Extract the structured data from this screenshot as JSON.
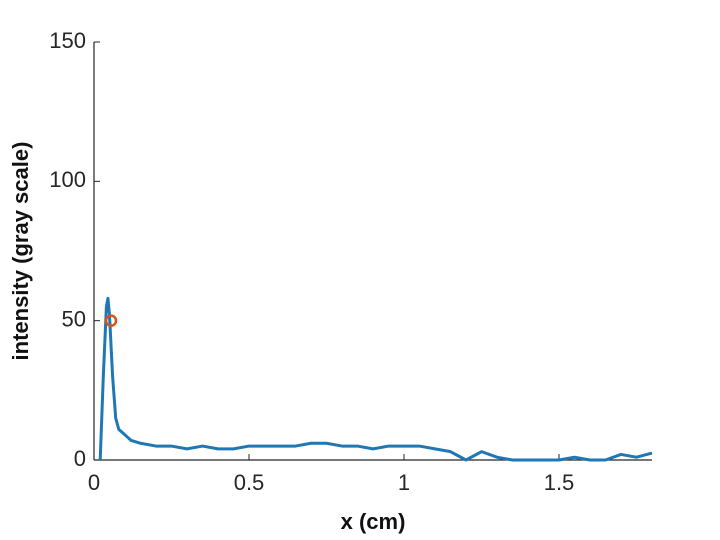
{
  "chart_data": {
    "type": "line",
    "xlabel": "x (cm)",
    "ylabel": "intensity (gray scale)",
    "x": [
      0.02,
      0.03,
      0.04,
      0.045,
      0.05,
      0.06,
      0.07,
      0.08,
      0.1,
      0.12,
      0.15,
      0.2,
      0.25,
      0.3,
      0.35,
      0.4,
      0.45,
      0.5,
      0.55,
      0.6,
      0.65,
      0.7,
      0.75,
      0.8,
      0.85,
      0.9,
      0.95,
      1.0,
      1.05,
      1.1,
      1.15,
      1.2,
      1.25,
      1.3,
      1.35,
      1.4,
      1.45,
      1.5,
      1.55,
      1.6,
      1.65,
      1.7,
      1.75,
      1.8
    ],
    "values": [
      0,
      30,
      55,
      58,
      52,
      30,
      15,
      11,
      9,
      7,
      6,
      5,
      5,
      4,
      5,
      4,
      4,
      5,
      5,
      5,
      5,
      6,
      6,
      5,
      5,
      4,
      5,
      5,
      5,
      4,
      3,
      0,
      3,
      1,
      0,
      0,
      0,
      0,
      1,
      0,
      0,
      2,
      1,
      2.5
    ],
    "color": "#1f77b4",
    "points": {
      "x": [
        0.055
      ],
      "values": [
        50
      ],
      "color": "#d95319"
    },
    "xlim": [
      0,
      1.8
    ],
    "ylim": [
      0,
      150
    ],
    "xticks": [
      0,
      0.5,
      1,
      1.5
    ],
    "yticks": [
      0,
      50,
      100,
      150
    ],
    "grid": false
  }
}
